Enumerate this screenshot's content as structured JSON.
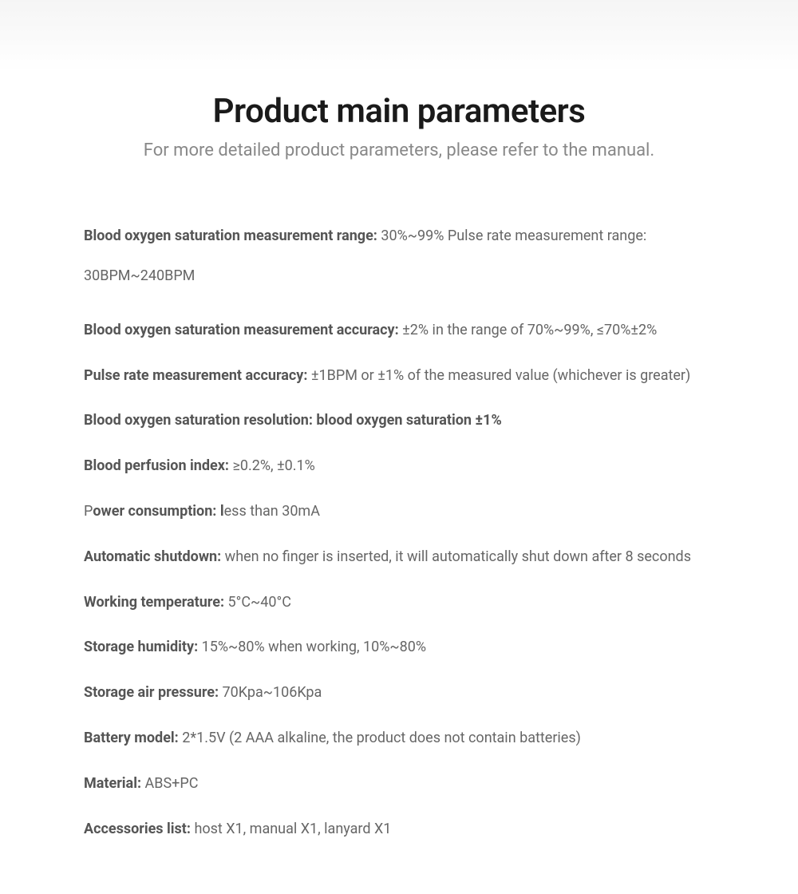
{
  "header": {
    "title": "Product main parameters",
    "subtitle": "For more detailed product parameters, please refer to the manual."
  },
  "params": [
    {
      "label": "Blood oxygen saturation measurement range: ",
      "value": "30%~99% Pulse rate measurement range: 30BPM~240BPM"
    },
    {
      "label": "Blood oxygen saturation measurement accuracy: ",
      "value": "±2% in the range of 70%~99%, ≤70%±2%"
    },
    {
      "label": "Pulse rate measurement accuracy: ",
      "value": "±1BPM or ±1% of the measured value (whichever is greater)"
    },
    {
      "label": "Blood oxygen saturation resolution: blood oxygen saturation ±1%",
      "value": ""
    },
    {
      "label": "Blood perfusion index: ",
      "value": "≥0.2%, ±0.1%"
    },
    {
      "label_prefix": "P",
      "label": "ower consumption: l",
      "value": "ess than 30mA"
    },
    {
      "label": "Automatic shutdown: ",
      "value": "when no finger is inserted, it will automatically shut down after 8 seconds"
    },
    {
      "label": "Working temperature: ",
      "value": "5°C~40°C"
    },
    {
      "label": "Storage humidity: ",
      "value": "15%~80% when working, 10%~80%"
    },
    {
      "label": "Storage air pressure: ",
      "value": "70Kpa~106Kpa"
    },
    {
      "label": "Battery model: ",
      "value": "2*1.5V (2 AAA alkaline, the product does not contain batteries)"
    },
    {
      "label": "Material: ",
      "value": "ABS+PC"
    },
    {
      "label": "Accessories list: ",
      "value": "host X1, manual X1, lanyard X1"
    }
  ],
  "styling": {
    "title_color": "#1a1a1a",
    "subtitle_color": "#888888",
    "label_color": "#555555",
    "value_color": "#666666",
    "title_fontsize": 42,
    "subtitle_fontsize": 22,
    "param_fontsize": 18,
    "background_gradient_top": "#f5f5f5",
    "background_color": "#ffffff"
  }
}
